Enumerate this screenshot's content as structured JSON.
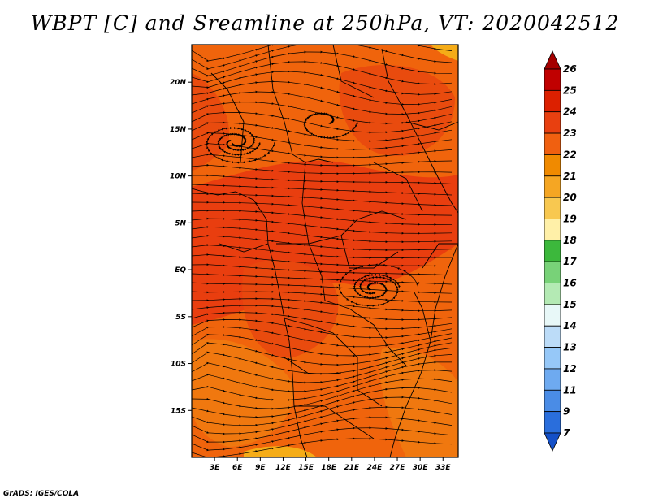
{
  "title": "WBPT [C] and Sreamline at 250hPa, VT: 2020042512",
  "credit": "GrADS: IGES/COLA",
  "map": {
    "lon_range": [
      0,
      35
    ],
    "lat_range": [
      -20,
      24
    ],
    "lat_ticks": [
      {
        "value": 20,
        "label": "20N"
      },
      {
        "value": 15,
        "label": "15N"
      },
      {
        "value": 10,
        "label": "10N"
      },
      {
        "value": 5,
        "label": "5N"
      },
      {
        "value": 0,
        "label": "EQ"
      },
      {
        "value": -5,
        "label": "5S"
      },
      {
        "value": -10,
        "label": "10S"
      },
      {
        "value": -15,
        "label": "15S"
      }
    ],
    "lon_ticks": [
      {
        "value": 3,
        "label": "3E"
      },
      {
        "value": 6,
        "label": "6E"
      },
      {
        "value": 9,
        "label": "9E"
      },
      {
        "value": 12,
        "label": "12E"
      },
      {
        "value": 15,
        "label": "15E"
      },
      {
        "value": 18,
        "label": "18E"
      },
      {
        "value": 21,
        "label": "21E"
      },
      {
        "value": 24,
        "label": "24E"
      },
      {
        "value": 27,
        "label": "27E"
      },
      {
        "value": 30,
        "label": "30E"
      },
      {
        "value": 33,
        "label": "33E"
      }
    ],
    "field_colors": {
      "low": "#f0640c",
      "mid": "#e8480e",
      "high": "#e83a10",
      "warm": "#f07a10",
      "hot": "#f5b418"
    }
  },
  "colorbar": {
    "levels": [
      "26",
      "25",
      "24",
      "23",
      "22",
      "21",
      "20",
      "19",
      "18",
      "17",
      "16",
      "15",
      "14",
      "13",
      "12",
      "11",
      "9",
      "7"
    ],
    "colors": [
      "#a50000",
      "#c00000",
      "#dc2000",
      "#e84010",
      "#f06010",
      "#f08a00",
      "#f5a623",
      "#f8c850",
      "#fff0a8",
      "#3cb83c",
      "#78d278",
      "#b4eab4",
      "#e8f8f8",
      "#bcdcf8",
      "#96c8f8",
      "#6eaaf0",
      "#4a8ce6",
      "#2a6edc",
      "#1450c8"
    ]
  }
}
